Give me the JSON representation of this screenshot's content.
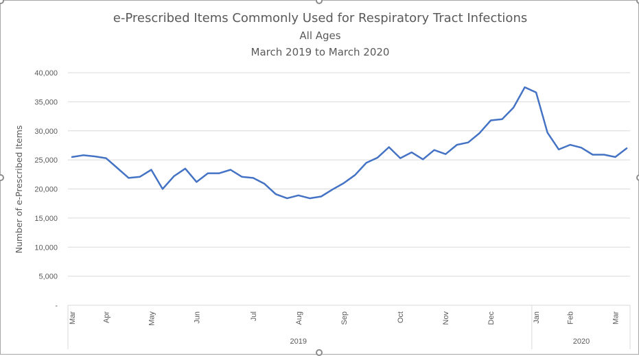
{
  "chart_data": {
    "type": "line",
    "title": "e-Prescribed Items Commonly Used for Respiratory Tract Infections",
    "subtitle": "All Ages",
    "subtitle2": "March 2019 to March 2020",
    "ylabel": "Number of e-Prescribed Items",
    "ylim": [
      0,
      40000
    ],
    "y_ticks": [
      0,
      5000,
      10000,
      15000,
      20000,
      25000,
      30000,
      35000,
      40000
    ],
    "y_tick_labels": [
      "-",
      "5,000",
      "10,000",
      "15,000",
      "20,000",
      "25,000",
      "30,000",
      "35,000",
      "40,000"
    ],
    "grid": true,
    "line_color": "#4472c4",
    "month_labels": [
      {
        "label": "Mar",
        "index": 0
      },
      {
        "label": "Apr",
        "index": 3
      },
      {
        "label": "May",
        "index": 7
      },
      {
        "label": "Jun",
        "index": 11
      },
      {
        "label": "Jul",
        "index": 16
      },
      {
        "label": "Aug",
        "index": 20
      },
      {
        "label": "Sep",
        "index": 24
      },
      {
        "label": "Oct",
        "index": 29
      },
      {
        "label": "Nov",
        "index": 33
      },
      {
        "label": "Dec",
        "index": 37
      },
      {
        "label": "Jan",
        "index": 41
      },
      {
        "label": "Feb",
        "index": 44
      },
      {
        "label": "Mar",
        "index": 48
      }
    ],
    "year_groups": [
      {
        "label": "2019",
        "start": 0,
        "end": 40
      },
      {
        "label": "2020",
        "start": 41,
        "end": 49
      }
    ],
    "series": [
      {
        "values": [
          25500,
          25800,
          25600,
          25300,
          23600,
          21900,
          22100,
          23300,
          20000,
          22200,
          23500,
          21200,
          22700,
          22700,
          23300,
          22100,
          21900,
          20900,
          19100,
          18400,
          18900,
          18400,
          18700,
          19900,
          21000,
          22400,
          24500,
          25400,
          27200,
          25300,
          26300,
          25100,
          26700,
          26000,
          27600,
          28000,
          29600,
          31800,
          32000,
          34000,
          37500,
          36600,
          29700,
          26800,
          27600,
          27100,
          25900,
          25900,
          25500,
          27000
        ]
      }
    ]
  }
}
